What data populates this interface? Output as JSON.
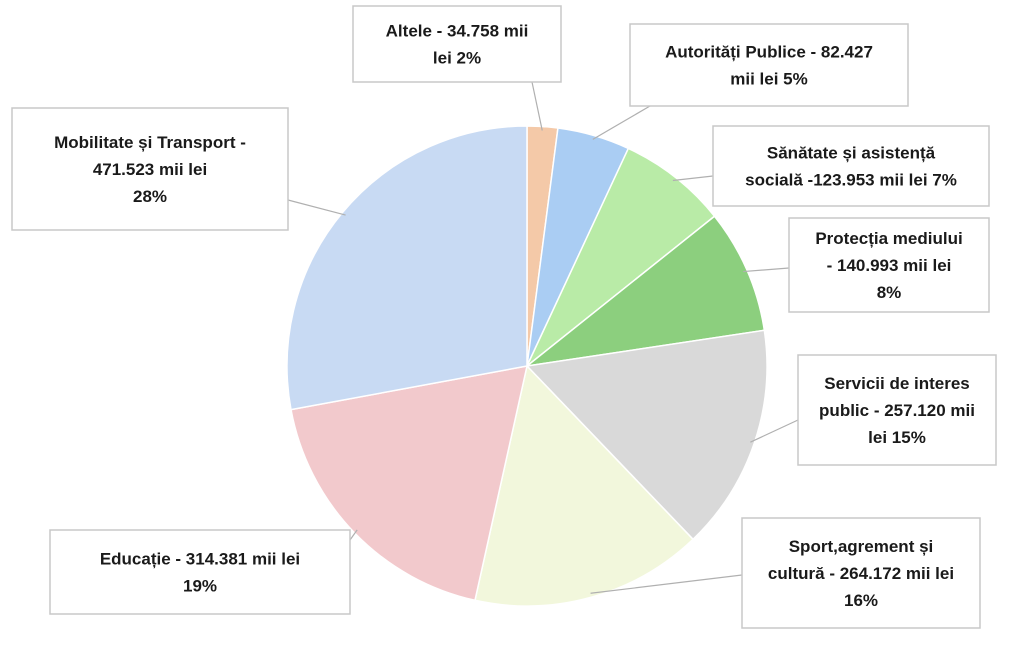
{
  "chart_data": {
    "type": "pie",
    "start_angle_deg": 0,
    "direction": "clockwise",
    "slices": [
      {
        "label_lines": [
          "Altele - 34.758 mii",
          "lei 2%"
        ],
        "category": "Altele",
        "value": 34.758,
        "percent": 2,
        "color": "#f4c9a8"
      },
      {
        "label_lines": [
          "Autorități Publice - 82.427",
          "mii lei 5%"
        ],
        "category": "Autorități Publice",
        "value": 82.427,
        "percent": 5,
        "color": "#aacdf3"
      },
      {
        "label_lines": [
          "Sănătate și asistență",
          "socială -123.953 mii lei 7%"
        ],
        "category": "Sănătate și asistență socială",
        "value": 123.953,
        "percent": 7,
        "color": "#b9eba7"
      },
      {
        "label_lines": [
          "Protecția mediului",
          "- 140.993 mii lei",
          "8%"
        ],
        "category": "Protecția mediului",
        "value": 140.993,
        "percent": 8,
        "color": "#8ccf7e"
      },
      {
        "label_lines": [
          "Servicii de interes",
          "public - 257.120 mii",
          "lei 15%"
        ],
        "category": "Servicii de interes public",
        "value": 257.12,
        "percent": 15,
        "color": "#d9d9d9"
      },
      {
        "label_lines": [
          "Sport,agrement și",
          "cultură - 264.172 mii lei",
          "16%"
        ],
        "category": "Sport,agrement și cultură",
        "value": 264.172,
        "percent": 16,
        "color": "#f2f7dc"
      },
      {
        "label_lines": [
          "Educație - 314.381 mii lei",
          "19%"
        ],
        "category": "Educație",
        "value": 314.381,
        "percent": 19,
        "color": "#f2c9cc"
      },
      {
        "label_lines": [
          "Mobilitate și Transport -",
          "471.523 mii lei",
          "28%"
        ],
        "category": "Mobilitate și Transport",
        "value": 471.523,
        "percent": 28,
        "color": "#c8daf3"
      }
    ]
  }
}
